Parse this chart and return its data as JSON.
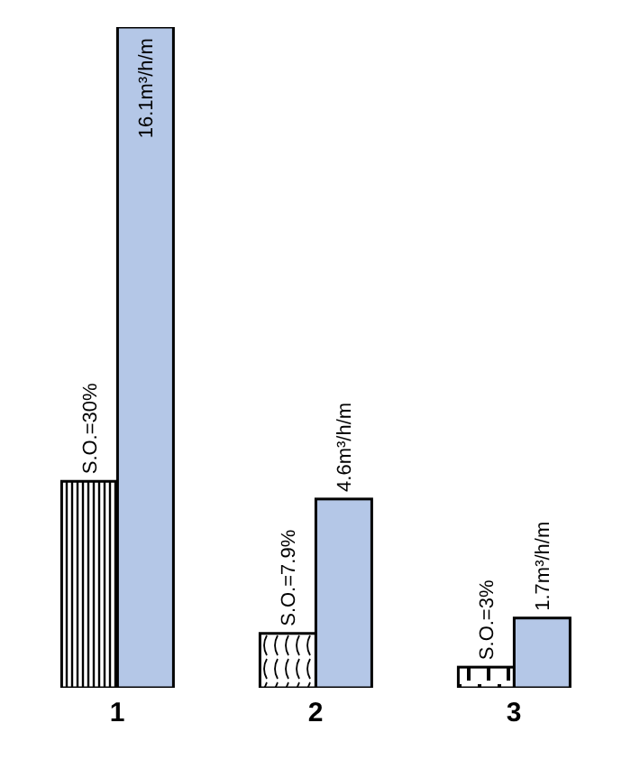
{
  "chart_data": {
    "type": "bar",
    "categories": [
      "1",
      "2",
      "3"
    ],
    "series": [
      {
        "axis": "y2",
        "color": "#000000",
        "values": [
          30,
          7.9,
          3
        ],
        "value_labels": [
          "S.O.=30%",
          "S.O.=7.9%",
          "S.O.=3%"
        ]
      },
      {
        "color": "#b4c7e7",
        "values": [
          16.1,
          4.6,
          1.7
        ],
        "value_labels": [
          "16.1m³/h/m",
          "4.6m³/h/m",
          "1.7m³/h/m"
        ]
      }
    ],
    "legend": false,
    "grid": false
  }
}
